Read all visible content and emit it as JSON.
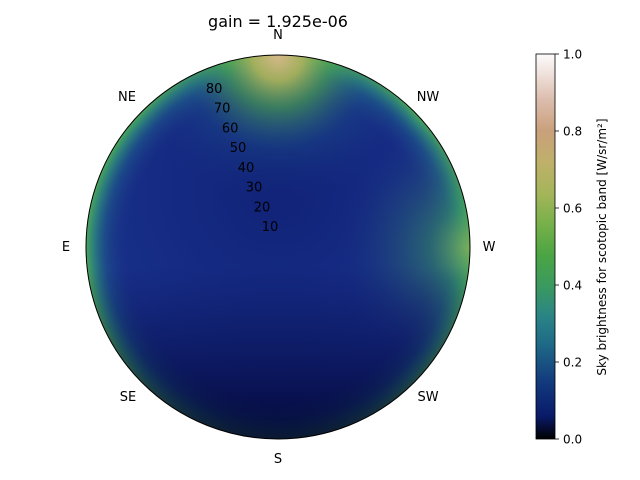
{
  "chart_data": {
    "type": "heatmap",
    "projection": "polar-sky-dome",
    "title": "gain = 1.925e-06",
    "compass": {
      "N": "N",
      "NE": "NE",
      "E": "E",
      "SE": "SE",
      "S": "S",
      "SW": "SW",
      "W": "W",
      "NW": "NW"
    },
    "zenith_ticks": [
      {
        "angle": 80,
        "label": "80"
      },
      {
        "angle": 70,
        "label": "70"
      },
      {
        "angle": 60,
        "label": "60"
      },
      {
        "angle": 50,
        "label": "50"
      },
      {
        "angle": 40,
        "label": "40"
      },
      {
        "angle": 30,
        "label": "30"
      },
      {
        "angle": 20,
        "label": "20"
      },
      {
        "angle": 10,
        "label": "10"
      }
    ],
    "colorbar": {
      "label": "Sky brightness for scotopic band [W/sr/m²]",
      "colormap": "gist_earth",
      "range": [
        0.0,
        1.0
      ],
      "ticks": [
        {
          "value": 0.0,
          "label": "0.0"
        },
        {
          "value": 0.2,
          "label": "0.2"
        },
        {
          "value": 0.4,
          "label": "0.4"
        },
        {
          "value": 0.6,
          "label": "0.6"
        },
        {
          "value": 0.8,
          "label": "0.8"
        },
        {
          "value": 1.0,
          "label": "1.0"
        }
      ]
    },
    "brightness_profile": {
      "center": 0.15,
      "south_edge": 0.02,
      "east_edge": 0.45,
      "west_edge": 0.55,
      "north_edge": 0.75
    },
    "grid": false
  }
}
